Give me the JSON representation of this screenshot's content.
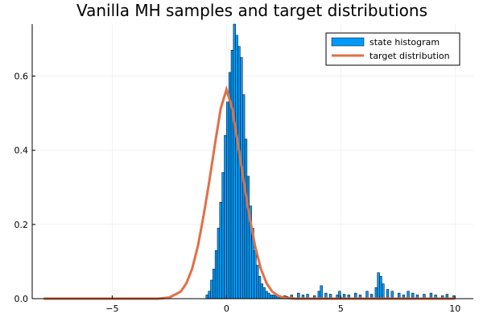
{
  "chart_data": {
    "type": "bar",
    "title": "Vanilla MH samples and target distributions",
    "xlabel": "",
    "ylabel": "",
    "xlim": [
      -8.5,
      10.8
    ],
    "ylim": [
      0,
      0.74
    ],
    "x_ticks": [
      -5,
      0,
      5,
      10
    ],
    "y_ticks": [
      0.0,
      0.2,
      0.4,
      0.6
    ],
    "x_tick_labels": [
      "−5",
      "0",
      "5",
      "10"
    ],
    "y_tick_labels": [
      "0.0",
      "0.2",
      "0.4",
      "0.6"
    ],
    "grid": true,
    "legend_position": "top-right",
    "series": [
      {
        "name": "state histogram",
        "kind": "histogram",
        "color": "#009AFA",
        "bin_width": 0.1,
        "x": [
          -0.9,
          -0.8,
          -0.7,
          -0.6,
          -0.5,
          -0.4,
          -0.3,
          -0.2,
          -0.1,
          0.0,
          0.1,
          0.2,
          0.3,
          0.4,
          0.5,
          0.6,
          0.7,
          0.8,
          0.9,
          1.0,
          1.1,
          1.2,
          1.3,
          1.4,
          1.5,
          1.6,
          1.7,
          1.8,
          1.9,
          2.0,
          2.1,
          2.2,
          2.3,
          2.4,
          2.5,
          2.6,
          2.8,
          3.1,
          3.3,
          3.5,
          3.8,
          4.0,
          4.1,
          4.3,
          4.5,
          4.8,
          4.9,
          5.1,
          5.3,
          5.6,
          5.8,
          6.1,
          6.3,
          6.5,
          6.6,
          6.7,
          6.8,
          7.0,
          7.2,
          7.5,
          7.7,
          7.9,
          8.1,
          8.3,
          8.6,
          8.9,
          9.1,
          9.4,
          9.6,
          9.9
        ],
        "values": [
          0.01,
          0.02,
          0.05,
          0.08,
          0.13,
          0.19,
          0.26,
          0.34,
          0.44,
          0.53,
          0.61,
          0.67,
          0.74,
          0.71,
          0.68,
          0.65,
          0.55,
          0.43,
          0.33,
          0.25,
          0.19,
          0.13,
          0.09,
          0.06,
          0.04,
          0.03,
          0.02,
          0.015,
          0.01,
          0.01,
          0.008,
          0.006,
          0.005,
          0.004,
          0.008,
          0.006,
          0.01,
          0.015,
          0.01,
          0.012,
          0.008,
          0.02,
          0.035,
          0.015,
          0.012,
          0.01,
          0.02,
          0.012,
          0.01,
          0.015,
          0.01,
          0.02,
          0.012,
          0.03,
          0.07,
          0.06,
          0.04,
          0.025,
          0.02,
          0.015,
          0.01,
          0.02,
          0.015,
          0.01,
          0.012,
          0.015,
          0.01,
          0.008,
          0.012,
          0.008
        ]
      },
      {
        "name": "target distribution",
        "kind": "line",
        "color": "#E26F46",
        "x": [
          -8.0,
          -5.0,
          -3.0,
          -2.5,
          -2.0,
          -1.75,
          -1.5,
          -1.25,
          -1.0,
          -0.75,
          -0.5,
          -0.25,
          0.0,
          0.25,
          0.5,
          0.75,
          1.0,
          1.25,
          1.5,
          1.75,
          2.0,
          2.25,
          2.5,
          3.0,
          4.0,
          6.0,
          8.0,
          10.0
        ],
        "values": [
          0.0,
          0.0,
          0.0,
          0.003,
          0.019,
          0.042,
          0.081,
          0.142,
          0.224,
          0.317,
          0.418,
          0.513,
          0.564,
          0.513,
          0.418,
          0.317,
          0.224,
          0.142,
          0.081,
          0.042,
          0.019,
          0.008,
          0.003,
          0.0,
          0.0,
          0.0,
          0.0,
          0.0
        ]
      }
    ]
  }
}
